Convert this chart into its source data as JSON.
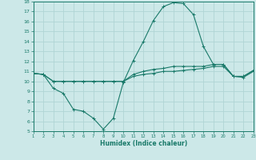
{
  "x": [
    1,
    2,
    3,
    4,
    5,
    6,
    7,
    8,
    9,
    10,
    11,
    12,
    13,
    14,
    15,
    16,
    17,
    18,
    19,
    20,
    21,
    22,
    23
  ],
  "line1": [
    10.8,
    10.7,
    9.3,
    8.8,
    7.2,
    7.0,
    6.3,
    5.2,
    6.3,
    9.9,
    12.1,
    14.0,
    16.1,
    17.5,
    17.9,
    17.8,
    16.7,
    13.5,
    11.7,
    11.7,
    10.5,
    10.5,
    11.1
  ],
  "line2": [
    10.8,
    10.7,
    10.0,
    10.0,
    10.0,
    10.0,
    10.0,
    10.0,
    10.0,
    10.0,
    10.7,
    11.0,
    11.2,
    11.3,
    11.5,
    11.5,
    11.5,
    11.5,
    11.7,
    11.7,
    10.5,
    10.5,
    11.1
  ],
  "line3": [
    10.8,
    10.7,
    10.0,
    10.0,
    10.0,
    10.0,
    10.0,
    10.0,
    10.0,
    10.0,
    10.5,
    10.7,
    10.8,
    11.0,
    11.0,
    11.1,
    11.2,
    11.3,
    11.5,
    11.5,
    10.5,
    10.4,
    11.0
  ],
  "line_color": "#1a7a6a",
  "bg_color": "#cce8e8",
  "grid_color": "#b0d4d4",
  "xlabel": "Humidex (Indice chaleur)",
  "ylim": [
    5,
    18
  ],
  "xlim": [
    1,
    23
  ],
  "yticks": [
    5,
    6,
    7,
    8,
    9,
    10,
    11,
    12,
    13,
    14,
    15,
    16,
    17,
    18
  ],
  "xticks": [
    1,
    2,
    3,
    4,
    5,
    6,
    7,
    8,
    9,
    10,
    11,
    12,
    13,
    14,
    15,
    16,
    17,
    18,
    19,
    20,
    21,
    22,
    23
  ]
}
